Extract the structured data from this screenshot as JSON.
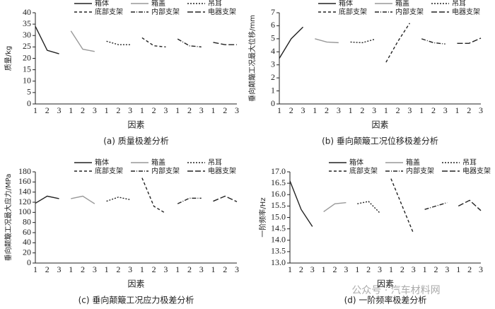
{
  "chart_data": [
    {
      "type": "line",
      "ylabel": "质量/kg",
      "xlabel": "因素",
      "caption": "(a)  质量极差分析",
      "categories": [
        "1",
        "2",
        "3",
        "1",
        "2",
        "3",
        "1",
        "2",
        "3",
        "1",
        "2",
        "3",
        "1",
        "2",
        "3",
        "1",
        "2",
        "3"
      ],
      "ylim": [
        0,
        40
      ],
      "yticks": [
        0,
        5,
        10,
        15,
        20,
        25,
        30,
        35,
        40
      ],
      "series": [
        {
          "name": "箱体",
          "color": "#222222",
          "dash": "none",
          "values": [
            34,
            23.5,
            22,
            null,
            null,
            null,
            null,
            null,
            null,
            null,
            null,
            null,
            null,
            null,
            null,
            null,
            null,
            null
          ]
        },
        {
          "name": "箱盖",
          "color": "#999999",
          "dash": "none",
          "values": [
            null,
            null,
            null,
            32,
            24,
            23,
            null,
            null,
            null,
            null,
            null,
            null,
            null,
            null,
            null,
            null,
            null,
            null
          ]
        },
        {
          "name": "吊耳",
          "color": "#222222",
          "dash": "2,2",
          "values": [
            null,
            null,
            null,
            null,
            null,
            null,
            27.5,
            26,
            26,
            null,
            null,
            null,
            null,
            null,
            null,
            null,
            null,
            null
          ]
        },
        {
          "name": "底部支架",
          "color": "#222222",
          "dash": "4,3",
          "values": [
            null,
            null,
            null,
            null,
            null,
            null,
            null,
            null,
            null,
            29,
            25.5,
            25,
            null,
            null,
            null,
            null,
            null,
            null
          ]
        },
        {
          "name": "内部支架",
          "color": "#222222",
          "dash": "6,2,1,2",
          "values": [
            null,
            null,
            null,
            null,
            null,
            null,
            null,
            null,
            null,
            null,
            null,
            null,
            28.5,
            25.5,
            25,
            null,
            null,
            null
          ]
        },
        {
          "name": "电器支架",
          "color": "#222222",
          "dash": "8,3",
          "values": [
            null,
            null,
            null,
            null,
            null,
            null,
            null,
            null,
            null,
            null,
            null,
            null,
            null,
            null,
            null,
            27,
            26,
            26
          ]
        }
      ]
    },
    {
      "type": "line",
      "ylabel": "垂向颠簸工况最大位移/mm",
      "xlabel": "因素",
      "caption": "(b)  垂向颠簸工况位移极差分析",
      "categories": [
        "1",
        "2",
        "3",
        "1",
        "2",
        "3",
        "1",
        "2",
        "3",
        "1",
        "2",
        "3",
        "1",
        "2",
        "3",
        "1",
        "2",
        "3"
      ],
      "ylim": [
        0,
        7
      ],
      "yticks": [
        0,
        1,
        2,
        3,
        4,
        5,
        6,
        7
      ],
      "series": [
        {
          "name": "箱体",
          "color": "#222222",
          "dash": "none",
          "values": [
            3.5,
            5,
            5.9,
            null,
            null,
            null,
            null,
            null,
            null,
            null,
            null,
            null,
            null,
            null,
            null,
            null,
            null,
            null
          ]
        },
        {
          "name": "箱盖",
          "color": "#999999",
          "dash": "none",
          "values": [
            null,
            null,
            null,
            5,
            4.75,
            4.7,
            null,
            null,
            null,
            null,
            null,
            null,
            null,
            null,
            null,
            null,
            null,
            null
          ]
        },
        {
          "name": "吊耳",
          "color": "#222222",
          "dash": "2,2",
          "values": [
            null,
            null,
            null,
            null,
            null,
            null,
            4.75,
            4.7,
            4.95,
            null,
            null,
            null,
            null,
            null,
            null,
            null,
            null,
            null
          ]
        },
        {
          "name": "底部支架",
          "color": "#222222",
          "dash": "4,3",
          "values": [
            null,
            null,
            null,
            null,
            null,
            null,
            null,
            null,
            null,
            3.2,
            4.8,
            6.2,
            null,
            null,
            null,
            null,
            null,
            null
          ]
        },
        {
          "name": "内部支架",
          "color": "#222222",
          "dash": "6,2,1,2",
          "values": [
            null,
            null,
            null,
            null,
            null,
            null,
            null,
            null,
            null,
            null,
            null,
            null,
            5,
            4.7,
            4.6,
            null,
            null,
            null
          ]
        },
        {
          "name": "电器支架",
          "color": "#222222",
          "dash": "8,3",
          "values": [
            null,
            null,
            null,
            null,
            null,
            null,
            null,
            null,
            null,
            null,
            null,
            null,
            null,
            null,
            null,
            4.65,
            4.65,
            5.05
          ]
        }
      ]
    },
    {
      "type": "line",
      "ylabel": "垂向颠簸工况最大应力/MPa",
      "xlabel": "因素",
      "caption": "(c)  垂向颠簸工况应力极差分析",
      "categories": [
        "1",
        "2",
        "3",
        "1",
        "2",
        "3",
        "1",
        "2",
        "3",
        "1",
        "2",
        "3",
        "1",
        "2",
        "3",
        "1",
        "2",
        "3"
      ],
      "ylim": [
        0,
        180
      ],
      "yticks": [
        0,
        20,
        40,
        60,
        80,
        100,
        120,
        140,
        160,
        180
      ],
      "series": [
        {
          "name": "箱体",
          "color": "#222222",
          "dash": "none",
          "values": [
            118,
            132,
            127,
            null,
            null,
            null,
            null,
            null,
            null,
            null,
            null,
            null,
            null,
            null,
            null,
            null,
            null,
            null
          ]
        },
        {
          "name": "箱盖",
          "color": "#999999",
          "dash": "none",
          "values": [
            null,
            null,
            null,
            127,
            132,
            117,
            null,
            null,
            null,
            null,
            null,
            null,
            null,
            null,
            null,
            null,
            null,
            null
          ]
        },
        {
          "name": "吊耳",
          "color": "#222222",
          "dash": "2,2",
          "values": [
            null,
            null,
            null,
            null,
            null,
            null,
            122,
            130,
            125,
            null,
            null,
            null,
            null,
            null,
            null,
            null,
            null,
            null
          ]
        },
        {
          "name": "底部支架",
          "color": "#222222",
          "dash": "4,3",
          "values": [
            null,
            null,
            null,
            null,
            null,
            null,
            null,
            null,
            null,
            168,
            112,
            98,
            null,
            null,
            null,
            null,
            null,
            null
          ]
        },
        {
          "name": "内部支架",
          "color": "#222222",
          "dash": "6,2,1,2",
          "values": [
            null,
            null,
            null,
            null,
            null,
            null,
            null,
            null,
            null,
            null,
            null,
            null,
            117,
            128,
            128,
            null,
            null,
            null
          ]
        },
        {
          "name": "电器支架",
          "color": "#222222",
          "dash": "8,3",
          "values": [
            null,
            null,
            null,
            null,
            null,
            null,
            null,
            null,
            null,
            null,
            null,
            null,
            null,
            null,
            null,
            122,
            132,
            121
          ]
        }
      ]
    },
    {
      "type": "line",
      "ylabel": "一阶频率/Hz",
      "xlabel": "因素",
      "caption": "(d)  一阶频率极差分析",
      "categories": [
        "1",
        "2",
        "3",
        "1",
        "2",
        "3",
        "1",
        "2",
        "3",
        "1",
        "2",
        "3",
        "1",
        "2",
        "3",
        "1",
        "2",
        "3"
      ],
      "ylim": [
        13,
        17
      ],
      "yticks": [
        {
          "value": 13,
          "label": "13.0"
        },
        13.5,
        {
          "value": 14,
          "label": "14.0"
        },
        14.5,
        {
          "value": 15,
          "label": "15.0"
        },
        15.5,
        {
          "value": 16,
          "label": "16.0"
        },
        16.5,
        {
          "value": 17,
          "label": "17.0"
        }
      ],
      "series": [
        {
          "name": "箱体",
          "color": "#222222",
          "dash": "none",
          "values": [
            16.6,
            15.35,
            14.6,
            null,
            null,
            null,
            null,
            null,
            null,
            null,
            null,
            null,
            null,
            null,
            null,
            null,
            null,
            null
          ]
        },
        {
          "name": "箱盖",
          "color": "#999999",
          "dash": "none",
          "values": [
            null,
            null,
            null,
            15.25,
            15.6,
            15.65,
            null,
            null,
            null,
            null,
            null,
            null,
            null,
            null,
            null,
            null,
            null,
            null
          ]
        },
        {
          "name": "吊耳",
          "color": "#222222",
          "dash": "2,2",
          "values": [
            null,
            null,
            null,
            null,
            null,
            null,
            15.6,
            15.7,
            15.2,
            null,
            null,
            null,
            null,
            null,
            null,
            null,
            null,
            null
          ]
        },
        {
          "name": "底部支架",
          "color": "#222222",
          "dash": "4,3",
          "values": [
            null,
            null,
            null,
            null,
            null,
            null,
            null,
            null,
            null,
            16.7,
            15.5,
            14.3,
            null,
            null,
            null,
            null,
            null,
            null
          ]
        },
        {
          "name": "内部支架",
          "color": "#222222",
          "dash": "6,2,1,2",
          "values": [
            null,
            null,
            null,
            null,
            null,
            null,
            null,
            null,
            null,
            null,
            null,
            null,
            15.35,
            15.5,
            15.65,
            null,
            null,
            null
          ]
        },
        {
          "name": "电器支架",
          "color": "#222222",
          "dash": "8,3",
          "values": [
            null,
            null,
            null,
            null,
            null,
            null,
            null,
            null,
            null,
            null,
            null,
            null,
            null,
            null,
            null,
            15.5,
            15.75,
            15.3
          ]
        }
      ]
    }
  ],
  "watermark": "公众号 · 汽车材料网"
}
